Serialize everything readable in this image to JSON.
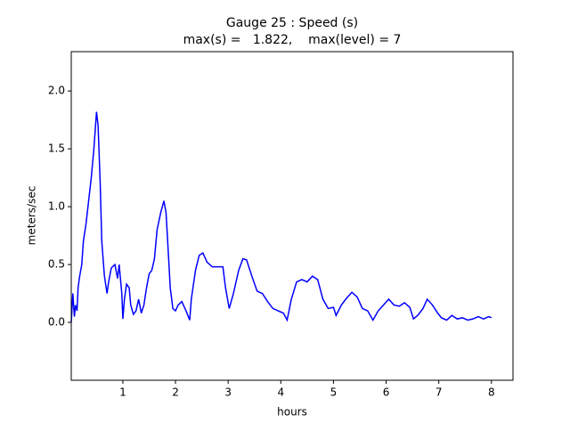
{
  "chart_data": {
    "type": "line",
    "title": "Gauge 25 : Speed (s)",
    "subtitle": "max(s) =   1.822,    max(level) = 7",
    "x_label": "hours",
    "y_label": "meters/sec",
    "xlim": [
      0.02,
      8.41
    ],
    "ylim": [
      -0.5,
      2.34
    ],
    "xticks": [
      1,
      2,
      3,
      4,
      5,
      6,
      7,
      8
    ],
    "yticks": [
      {
        "value": 0,
        "label": "0.0"
      },
      0.5,
      {
        "value": 1,
        "label": "1.0"
      },
      1.5,
      {
        "value": 2,
        "label": "2.0"
      }
    ],
    "grid": false,
    "series": [
      {
        "name": "Speed",
        "color": "#0000ff",
        "x": [
          0.02,
          0.05,
          0.08,
          0.1,
          0.13,
          0.15,
          0.18,
          0.22,
          0.25,
          0.3,
          0.35,
          0.4,
          0.45,
          0.5,
          0.53,
          0.57,
          0.6,
          0.65,
          0.7,
          0.73,
          0.78,
          0.85,
          0.9,
          0.93,
          0.98,
          1.0,
          1.03,
          1.07,
          1.12,
          1.15,
          1.2,
          1.25,
          1.3,
          1.35,
          1.4,
          1.45,
          1.5,
          1.55,
          1.6,
          1.65,
          1.72,
          1.78,
          1.82,
          1.87,
          1.9,
          1.95,
          2.0,
          2.05,
          2.12,
          2.2,
          2.27,
          2.3,
          2.38,
          2.45,
          2.52,
          2.6,
          2.7,
          2.8,
          2.9,
          2.95,
          3.02,
          3.1,
          3.2,
          3.28,
          3.35,
          3.45,
          3.55,
          3.65,
          3.75,
          3.85,
          3.95,
          4.05,
          4.12,
          4.2,
          4.3,
          4.4,
          4.5,
          4.6,
          4.7,
          4.8,
          4.9,
          5.0,
          5.05,
          5.15,
          5.25,
          5.35,
          5.45,
          5.55,
          5.65,
          5.75,
          5.85,
          5.95,
          6.05,
          6.15,
          6.25,
          6.35,
          6.45,
          6.52,
          6.6,
          6.7,
          6.78,
          6.88,
          6.98,
          7.05,
          7.15,
          7.25,
          7.35,
          7.45,
          7.55,
          7.65,
          7.75,
          7.85,
          7.95,
          8.0
        ],
        "values": [
          0.0,
          0.25,
          0.05,
          0.15,
          0.1,
          0.3,
          0.4,
          0.5,
          0.7,
          0.85,
          1.05,
          1.25,
          1.5,
          1.82,
          1.7,
          1.2,
          0.7,
          0.4,
          0.25,
          0.35,
          0.47,
          0.5,
          0.38,
          0.5,
          0.25,
          0.03,
          0.2,
          0.33,
          0.3,
          0.15,
          0.07,
          0.1,
          0.2,
          0.08,
          0.15,
          0.3,
          0.42,
          0.45,
          0.55,
          0.8,
          0.95,
          1.05,
          0.95,
          0.55,
          0.3,
          0.12,
          0.1,
          0.15,
          0.18,
          0.1,
          0.02,
          0.2,
          0.45,
          0.58,
          0.6,
          0.52,
          0.48,
          0.48,
          0.48,
          0.3,
          0.12,
          0.25,
          0.45,
          0.55,
          0.54,
          0.4,
          0.27,
          0.25,
          0.18,
          0.12,
          0.1,
          0.08,
          0.02,
          0.2,
          0.35,
          0.37,
          0.35,
          0.4,
          0.37,
          0.2,
          0.12,
          0.13,
          0.06,
          0.15,
          0.21,
          0.26,
          0.22,
          0.12,
          0.1,
          0.02,
          0.1,
          0.15,
          0.2,
          0.15,
          0.14,
          0.17,
          0.13,
          0.03,
          0.06,
          0.12,
          0.2,
          0.15,
          0.08,
          0.04,
          0.02,
          0.06,
          0.03,
          0.04,
          0.02,
          0.03,
          0.05,
          0.03,
          0.05,
          0.04
        ]
      }
    ]
  }
}
